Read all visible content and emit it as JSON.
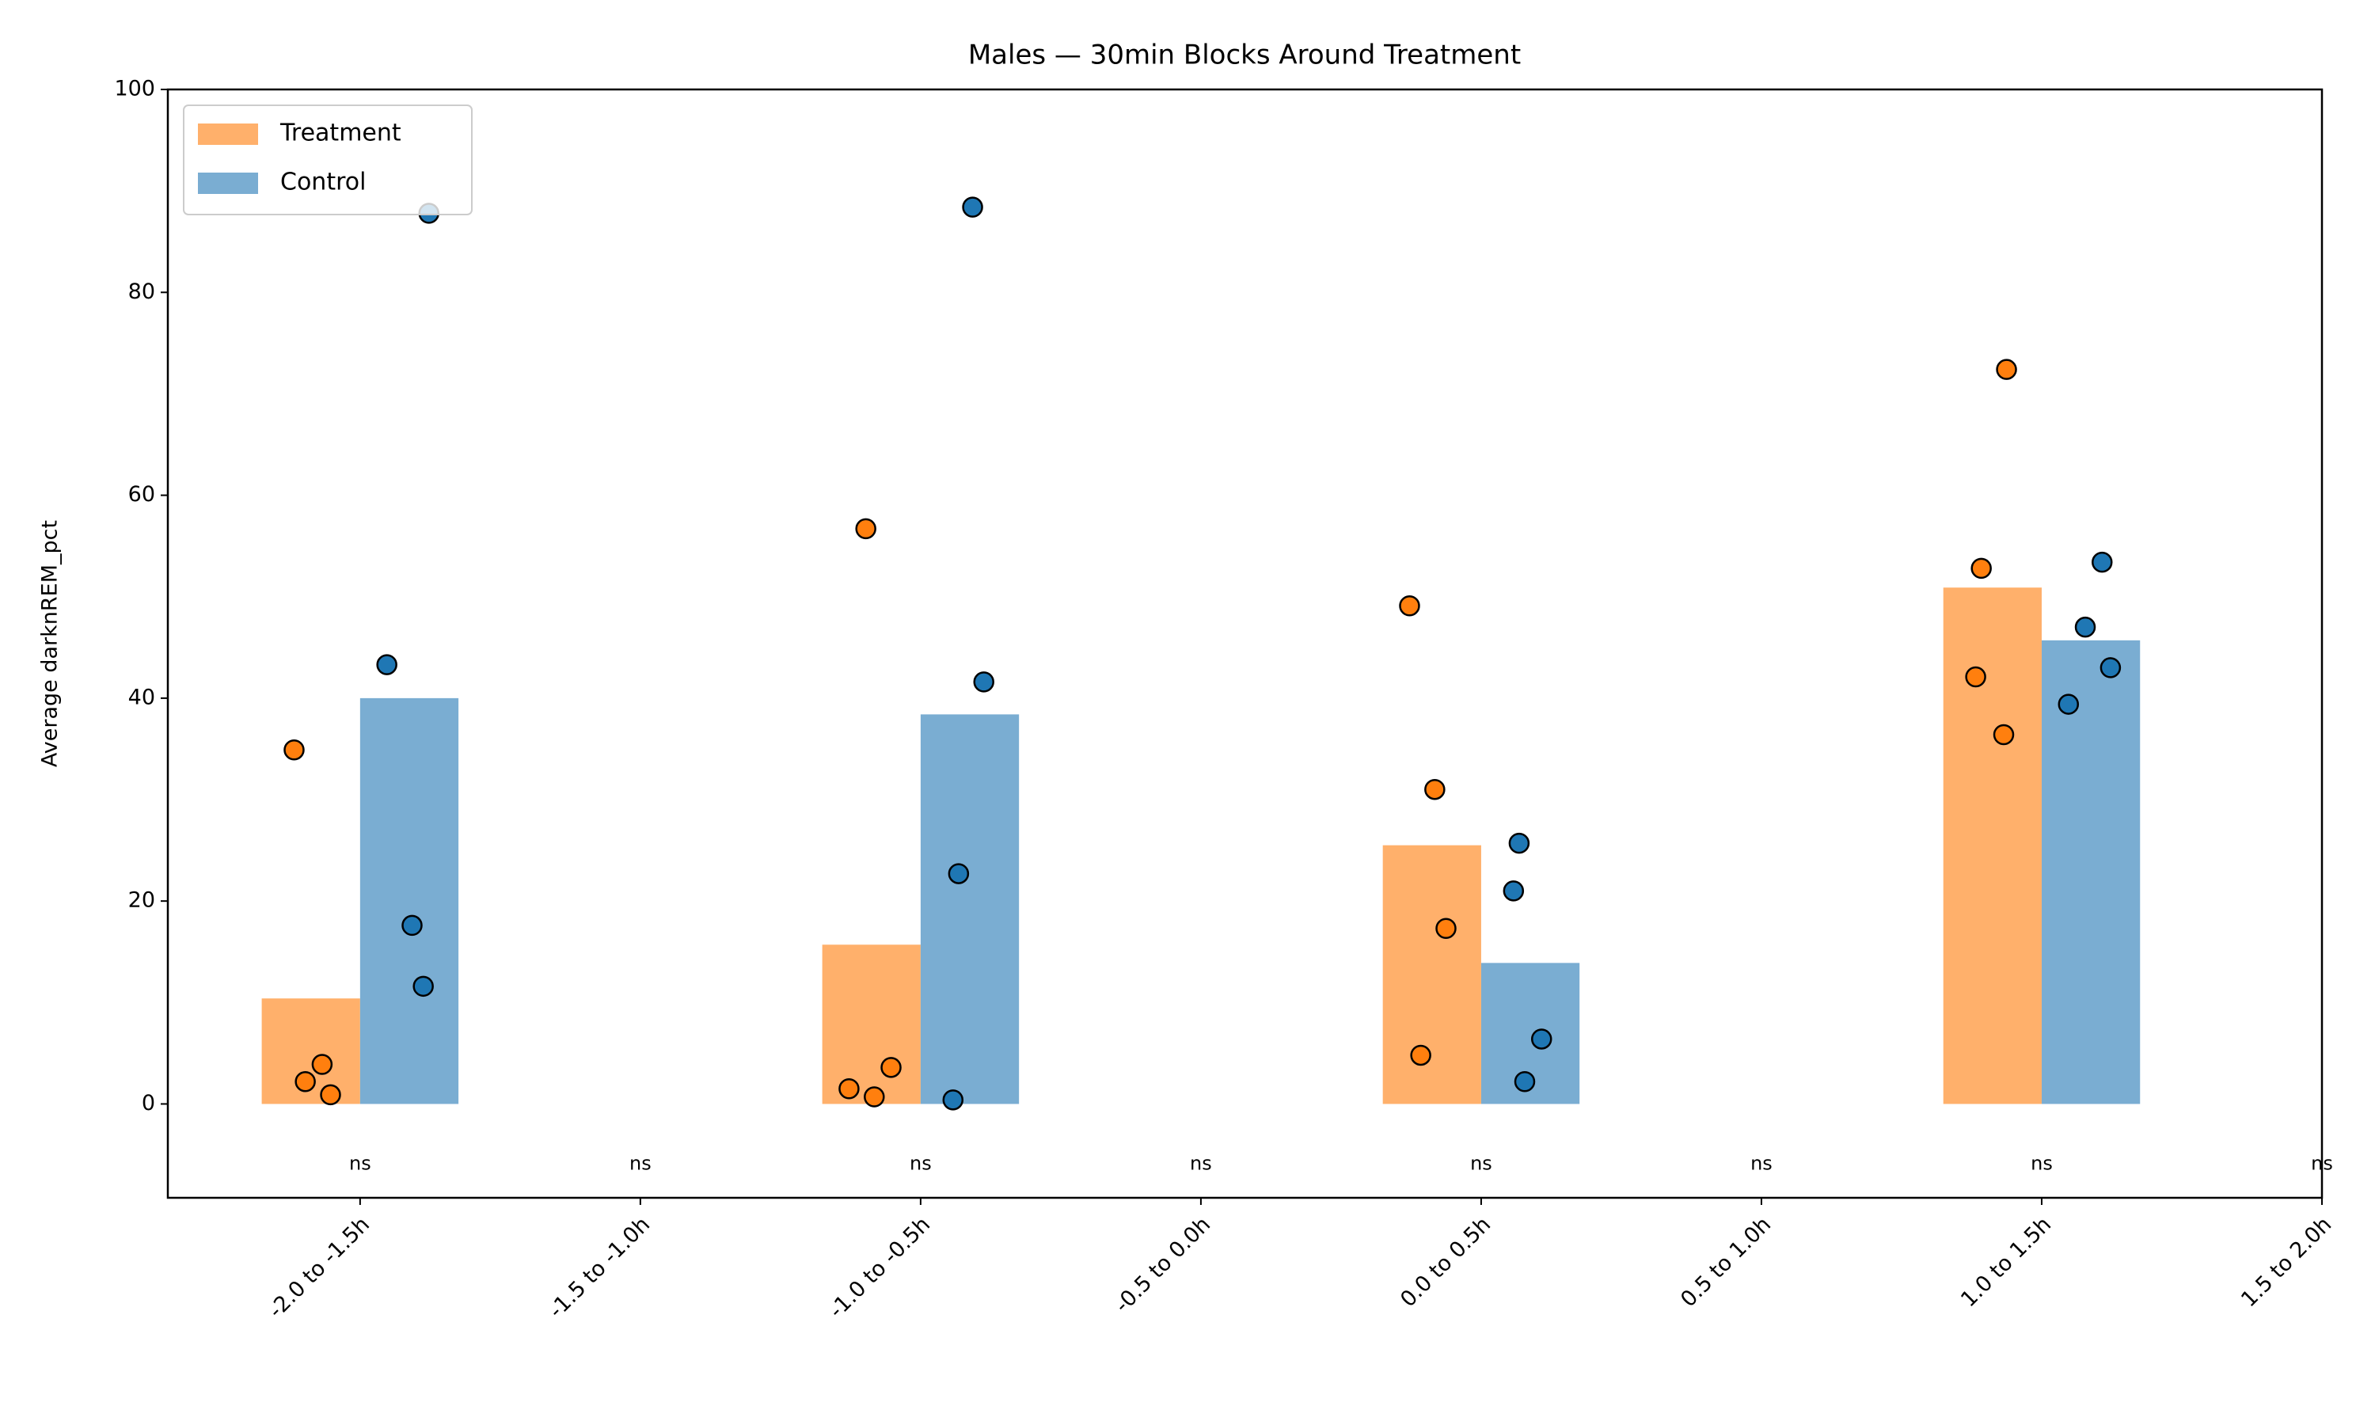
{
  "chart_data": {
    "type": "bar",
    "title": "Males — 30min Blocks Around Treatment",
    "ylabel": "Average darknREM_pct",
    "categories": [
      "-2.0 to -1.5h",
      "-1.5 to -1.0h",
      "-1.0 to -0.5h",
      "-0.5 to 0.0h",
      "0.0 to 0.5h",
      "0.5 to 1.0h",
      "1.0 to 1.5h",
      "1.5 to 2.0h"
    ],
    "series": [
      {
        "name": "Treatment",
        "color": "#ffb06b",
        "point_color": "#ff7f0e",
        "values": [
          10.4,
          null,
          15.7,
          null,
          25.5,
          null,
          50.9,
          null
        ],
        "points": [
          [
            34.9,
            3.9,
            2.2,
            0.9
          ],
          null,
          [
            56.7,
            3.6,
            1.5,
            0.7
          ],
          null,
          [
            49.1,
            31.0,
            17.3,
            4.8
          ],
          null,
          [
            72.4,
            52.8,
            42.1,
            36.4
          ],
          null
        ]
      },
      {
        "name": "Control",
        "color": "#7aadd2",
        "point_color": "#1f77b4",
        "values": [
          40.0,
          null,
          38.4,
          null,
          13.9,
          null,
          45.7,
          null
        ],
        "points": [
          [
            87.8,
            43.3,
            17.6,
            11.6
          ],
          null,
          [
            88.4,
            41.6,
            22.7,
            0.4
          ],
          null,
          [
            25.7,
            21.0,
            6.4,
            2.2
          ],
          null,
          [
            53.4,
            47.0,
            43.0,
            39.4
          ],
          null
        ]
      }
    ],
    "annotations": [
      "ns",
      "ns",
      "ns",
      "ns",
      "ns",
      "ns",
      "ns",
      "ns"
    ],
    "ylim": [
      -9.25,
      100
    ],
    "yticks": [
      0,
      20,
      40,
      60,
      80,
      100
    ],
    "grid": false,
    "legend": "upper left"
  }
}
